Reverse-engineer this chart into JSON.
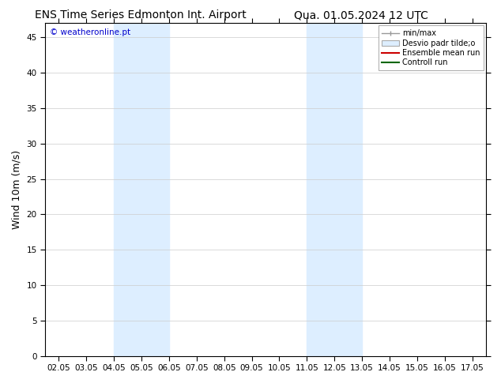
{
  "title_left": "ENS Time Series Edmonton Int. Airport",
  "title_right": "Qua. 01.05.2024 12 UTC",
  "ylabel": "Wind 10m (m/s)",
  "watermark": "© weatheronline.pt",
  "x_tick_labels": [
    "02.05",
    "03.05",
    "04.05",
    "05.05",
    "06.05",
    "07.05",
    "08.05",
    "09.05",
    "10.05",
    "11.05",
    "12.05",
    "13.05",
    "14.05",
    "15.05",
    "16.05",
    "17.05"
  ],
  "x_tick_positions": [
    2,
    3,
    4,
    5,
    6,
    7,
    8,
    9,
    10,
    11,
    12,
    13,
    14,
    15,
    16,
    17
  ],
  "xlim": [
    1.5,
    17.5
  ],
  "ylim": [
    0,
    47
  ],
  "yticks": [
    0,
    5,
    10,
    15,
    20,
    25,
    30,
    35,
    40,
    45
  ],
  "shaded_regions": [
    {
      "xmin": 4.0,
      "xmax": 6.0,
      "color": "#ddeeff"
    },
    {
      "xmin": 11.0,
      "xmax": 13.0,
      "color": "#ddeeff"
    }
  ],
  "background_color": "#ffffff",
  "plot_bg_color": "#ffffff",
  "grid_color": "#cccccc",
  "title_fontsize": 10,
  "tick_fontsize": 7.5,
  "ylabel_fontsize": 9,
  "watermark_color": "#0000cc",
  "legend_label_min_max": "min/max",
  "legend_label_std": "Desvio padr tilde;o",
  "legend_label_ens": "Ensemble mean run",
  "legend_label_ctrl": "Controll run"
}
